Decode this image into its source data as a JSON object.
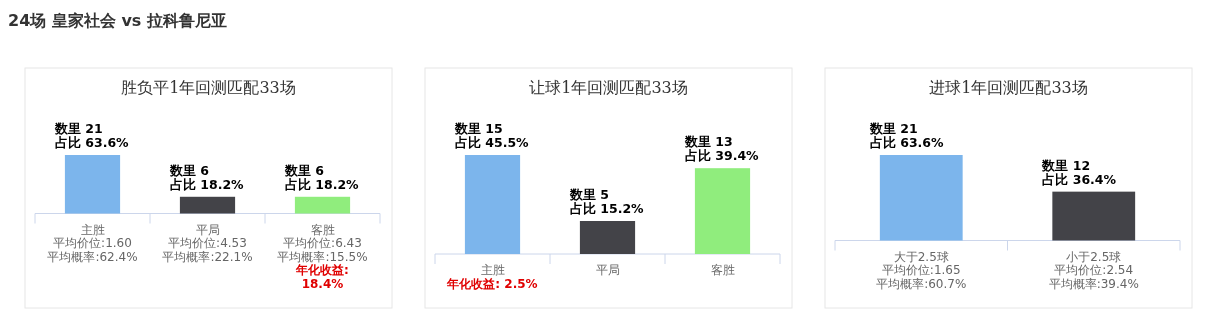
{
  "chart_data": [
    {
      "type": "other",
      "title": "24场 皇家社会 vs 拉科鲁尼亚"
    },
    {
      "type": "bar",
      "title": "胜负平1年回测匹配33场",
      "categories": [
        "主胜",
        "平局",
        "客胜"
      ],
      "values": [
        21,
        6,
        6
      ],
      "colors": [
        "#7cb5ec",
        "#434348",
        "#90ed7d"
      ],
      "value_labels": [
        "数里 21\n占比 63.6%",
        "数里 6\n占比 18.2%",
        "数里 6\n占比 18.2%"
      ],
      "annotations": [
        "平均价位:1.60\n平均概率:62.4%",
        "平均价位:4.53\n平均概率:22.1%",
        "平均价位:6.43\n平均概率:15.5%",
        "年化收益:\n18.4%"
      ]
    },
    {
      "type": "bar",
      "title": "让球1年回测匹配33场",
      "categories": [
        "主胜",
        "平局",
        "客胜"
      ],
      "values": [
        15,
        5,
        13
      ],
      "colors": [
        "#7cb5ec",
        "#434348",
        "#90ed7d"
      ],
      "value_labels": [
        "数里 15\n占比 45.5%",
        "数里 5\n占比 15.2%",
        "数里 13\n占比 39.4%"
      ],
      "annotations": [
        "年化收益: 2.5%"
      ]
    },
    {
      "type": "bar",
      "title": "进球1年回测匹配33场",
      "categories": [
        "大于2.5球",
        "小于2.5球"
      ],
      "values": [
        21,
        12
      ],
      "colors": [
        "#7cb5ec",
        "#434348"
      ],
      "value_labels": [
        "数里 21\n占比 63.6%",
        "数里 12\n占比 36.4%"
      ],
      "annotations": [
        "平均价位:1.65\n平均概率:60.7%",
        "平均价位:2.54\n平均概率:39.4%"
      ]
    }
  ]
}
